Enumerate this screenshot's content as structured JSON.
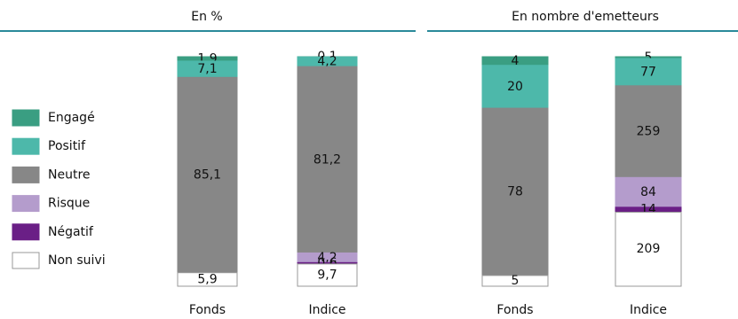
{
  "chart_data": {
    "type": "stacked_bar",
    "series": [
      {
        "name": "Engagé",
        "color": "#3a9e82"
      },
      {
        "name": "Positif",
        "color": "#4db8aa"
      },
      {
        "name": "Neutre",
        "color": "#878787"
      },
      {
        "name": "Risque",
        "color": "#b49ccc"
      },
      {
        "name": "Négatif",
        "color": "#6a1f86"
      },
      {
        "name": "Non suivi",
        "color": "#ffffff"
      }
    ],
    "panels": [
      {
        "title": "En %",
        "categories": [
          "Fonds",
          "Indice"
        ],
        "series": [
          {
            "values": [
              1.9,
              0.1
            ],
            "value_labels": [
              "1,9",
              "0,1"
            ]
          },
          {
            "values": [
              7.1,
              4.2
            ],
            "value_labels": [
              "7,1",
              "4,2"
            ]
          },
          {
            "values": [
              85.1,
              81.2
            ],
            "value_labels": [
              "85,1",
              "81,2"
            ]
          },
          {
            "values": [
              null,
              4.2
            ],
            "value_labels": [
              null,
              "4,2"
            ]
          },
          {
            "values": [
              null,
              0.6
            ],
            "value_labels": [
              null,
              "0,6"
            ]
          },
          {
            "values": [
              5.9,
              9.7
            ],
            "value_labels": [
              "5,9",
              "9,7"
            ]
          }
        ]
      },
      {
        "title": "En nombre d'emetteurs",
        "categories": [
          "Fonds",
          "Indice"
        ],
        "series": [
          {
            "values": [
              4,
              5
            ]
          },
          {
            "values": [
              20,
              77
            ]
          },
          {
            "values": [
              78,
              259
            ]
          },
          {
            "values": [
              null,
              84
            ]
          },
          {
            "values": [
              null,
              14
            ]
          },
          {
            "values": [
              5,
              209
            ]
          }
        ]
      }
    ]
  }
}
